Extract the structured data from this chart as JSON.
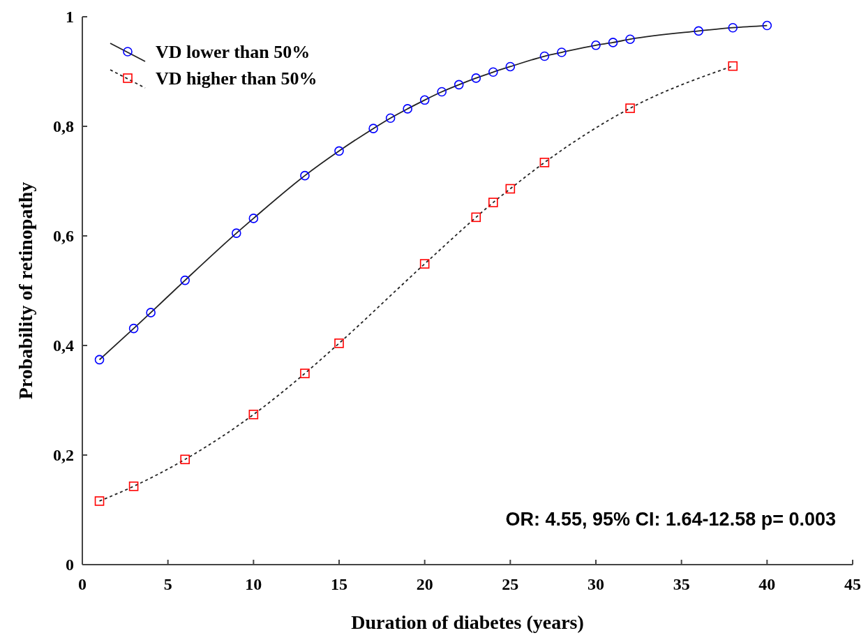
{
  "chart_data": {
    "type": "line",
    "xlabel": "Duration of diabetes (years)",
    "ylabel": "Probability of retinopathy",
    "xlim": [
      0,
      45
    ],
    "xticks": [
      0,
      5,
      10,
      15,
      20,
      25,
      30,
      35,
      40,
      45
    ],
    "ylim": [
      0,
      1
    ],
    "yticks": [
      0,
      {
        "value": 0.2,
        "label": "0,2"
      },
      {
        "value": 0.4,
        "label": "0,4"
      },
      {
        "value": 0.6,
        "label": "0,6"
      },
      {
        "value": 0.8,
        "label": "0,8"
      },
      1
    ],
    "legend": "top left",
    "grid": false,
    "annotations": [
      "OR: 4.55, 95% CI: 1.64-12.58 p= 0.003"
    ],
    "series": [
      {
        "name": "VD lower than 50%",
        "color": "#0000ff",
        "marker": "circle",
        "line_style": "solid",
        "x": [
          1,
          3,
          4,
          6,
          9,
          10,
          13,
          15,
          17,
          18,
          19,
          20,
          21,
          22,
          23,
          24,
          25,
          27,
          28,
          30,
          31,
          32,
          36,
          38,
          40
        ],
        "values": [
          0.374,
          0.431,
          0.46,
          0.519,
          0.605,
          0.632,
          0.71,
          0.755,
          0.796,
          0.815,
          0.832,
          0.848,
          0.863,
          0.876,
          0.888,
          0.899,
          0.909,
          0.928,
          0.935,
          0.948,
          0.953,
          0.959,
          0.974,
          0.98,
          0.984
        ]
      },
      {
        "name": "VD higher than 50%",
        "color": "#ff0000",
        "marker": "square",
        "line_style": "dotted",
        "x": [
          1,
          3,
          6,
          10,
          13,
          15,
          20,
          23,
          24,
          25,
          27,
          32,
          38
        ],
        "values": [
          0.116,
          0.143,
          0.192,
          0.274,
          0.349,
          0.404,
          0.549,
          0.634,
          0.661,
          0.686,
          0.734,
          0.833,
          0.91
        ]
      }
    ]
  }
}
